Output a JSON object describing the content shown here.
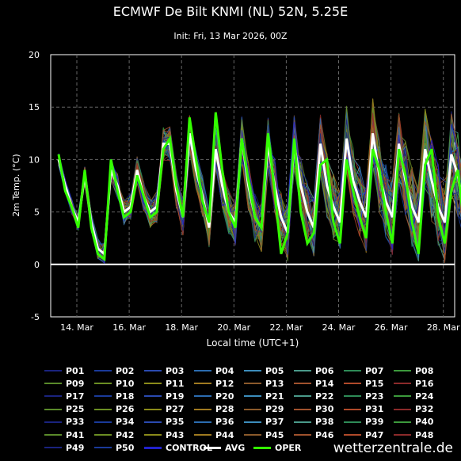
{
  "chart_data": {
    "type": "line",
    "title": "ECMWF De Bilt KNMI (NL) 52N, 5.25E",
    "subtitle": "Init: Fri, 13 Mar 2026, 00Z",
    "xlabel": "Local time (UTC+1)",
    "ylabel": "2m Temp. (°C)",
    "ylim": [
      -5,
      20
    ],
    "yticks": [
      -5,
      0,
      5,
      10,
      15,
      20
    ],
    "xticks": [
      "14. Mar",
      "16. Mar",
      "18. Mar",
      "20. Mar",
      "22. Mar",
      "24. Mar",
      "26. Mar",
      "28. Mar"
    ],
    "grid": true,
    "legend_placement": "bottom",
    "x_start": "2026-03-13 01:00",
    "x_step_hours": 6,
    "avg": [
      10,
      7.5,
      5.5,
      4,
      8.5,
      4,
      1.5,
      1,
      9,
      7.5,
      5,
      5.5,
      9,
      6.5,
      5,
      5.5,
      11.5,
      11.5,
      7,
      4.5,
      12.5,
      9,
      6.5,
      3.5,
      11,
      7.5,
      5,
      4,
      12,
      7.5,
      4.5,
      3.5,
      11.5,
      7.5,
      4.5,
      3,
      11.5,
      7.5,
      5,
      3.5,
      11.5,
      7.5,
      5.5,
      4,
      12,
      8,
      6,
      4.5,
      12.5,
      8.5,
      6,
      4.5,
      11.5,
      8,
      5.5,
      4,
      11,
      8,
      5.5,
      4,
      10.5,
      8.5,
      5
    ],
    "oper": [
      10.5,
      7,
      5.5,
      3.5,
      9,
      3.5,
      1,
      0.5,
      10,
      7,
      4.5,
      5,
      8.5,
      6.5,
      4.5,
      5,
      11,
      12,
      7.5,
      4.5,
      14,
      10,
      6,
      4,
      14.5,
      9,
      5,
      3.5,
      12,
      8,
      4.5,
      3.5,
      12.5,
      7,
      1,
      3,
      12,
      5,
      2,
      3,
      9.5,
      10,
      4,
      2,
      10,
      7,
      4.5,
      2.5,
      11,
      9,
      5,
      2,
      11,
      8.5,
      4,
      1,
      9.5,
      11,
      4.5,
      2,
      7,
      9,
      3.5
    ],
    "series": [
      {
        "name": "P01"
      },
      {
        "name": "P02"
      },
      {
        "name": "P03"
      },
      {
        "name": "P04"
      },
      {
        "name": "P05"
      },
      {
        "name": "P06"
      },
      {
        "name": "P07"
      },
      {
        "name": "P08"
      },
      {
        "name": "P09"
      },
      {
        "name": "P10"
      },
      {
        "name": "P11"
      },
      {
        "name": "P12"
      },
      {
        "name": "P13"
      },
      {
        "name": "P14"
      },
      {
        "name": "P15"
      },
      {
        "name": "P16"
      },
      {
        "name": "P17"
      },
      {
        "name": "P18"
      },
      {
        "name": "P19"
      },
      {
        "name": "P20"
      },
      {
        "name": "P21"
      },
      {
        "name": "P22"
      },
      {
        "name": "P23"
      },
      {
        "name": "P24"
      },
      {
        "name": "P25"
      },
      {
        "name": "P26"
      },
      {
        "name": "P27"
      },
      {
        "name": "P28"
      },
      {
        "name": "P29"
      },
      {
        "name": "P30"
      },
      {
        "name": "P31"
      },
      {
        "name": "P32"
      },
      {
        "name": "P33"
      },
      {
        "name": "P34"
      },
      {
        "name": "P35"
      },
      {
        "name": "P36"
      },
      {
        "name": "P37"
      },
      {
        "name": "P38"
      },
      {
        "name": "P39"
      },
      {
        "name": "P40"
      },
      {
        "name": "P41"
      },
      {
        "name": "P42"
      },
      {
        "name": "P43"
      },
      {
        "name": "P44"
      },
      {
        "name": "P45"
      },
      {
        "name": "P46"
      },
      {
        "name": "P47"
      },
      {
        "name": "P48"
      },
      {
        "name": "P49"
      },
      {
        "name": "P50"
      },
      {
        "name": "CONTROL"
      },
      {
        "name": "AVG"
      },
      {
        "name": "OPER"
      }
    ],
    "colors": {
      "avg": "#ffffff",
      "oper": "#33ff00",
      "control": "#2222cc",
      "palette": [
        "#1a237e",
        "#1a3a9a",
        "#2a4ab0",
        "#2b6cb0",
        "#3c8dbc",
        "#4a9a8a",
        "#2e8b57",
        "#3c9a3c",
        "#5a8a2a",
        "#6b8e23",
        "#8b8b1a",
        "#a07a20",
        "#8b5a2b",
        "#a0522d",
        "#b04a2a",
        "#8b2a2a"
      ]
    }
  },
  "credit": "wetterzentrale.de"
}
